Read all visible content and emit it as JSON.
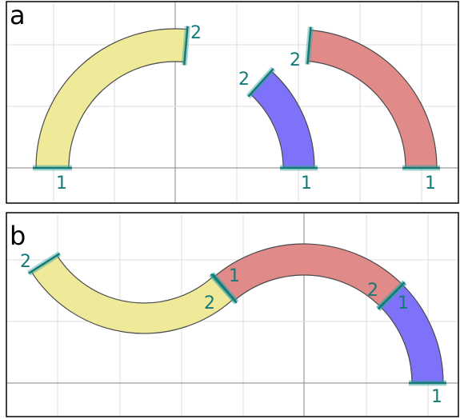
{
  "panels": [
    {
      "label": "a",
      "ports": [
        "1",
        "2",
        "2",
        "1",
        "2",
        "1"
      ]
    },
    {
      "label": "b",
      "ports": [
        "2",
        "1",
        "2",
        "2",
        "1",
        "1"
      ]
    }
  ]
}
